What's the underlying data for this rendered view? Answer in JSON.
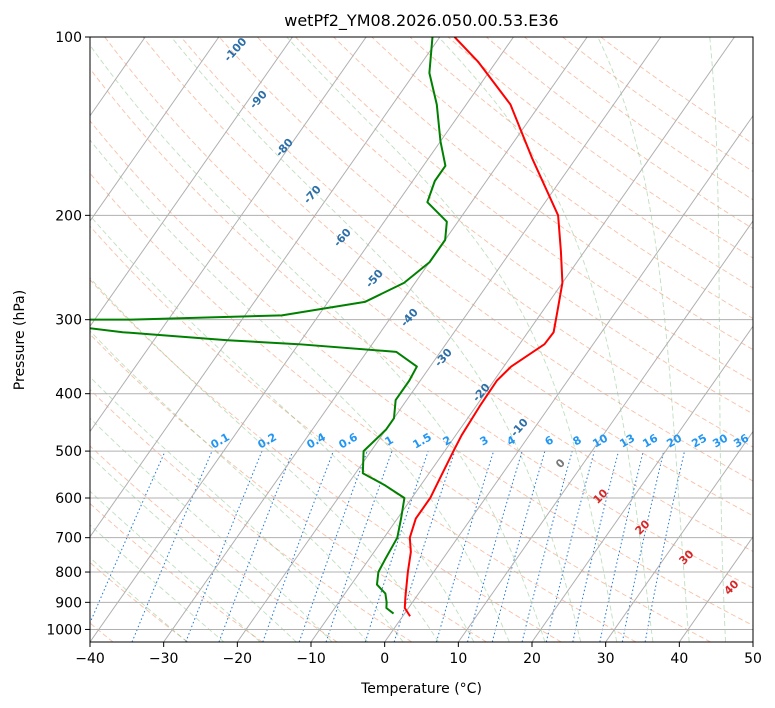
{
  "chart_data": {
    "type": "line",
    "title": "wetPf2_YM08.2026.050.00.53.E36",
    "xlabel": "Temperature (°C)",
    "ylabel": "Pressure (hPa)",
    "xlim": [
      -40,
      50
    ],
    "ylim": [
      1050,
      100
    ],
    "yscale": "log",
    "grid": true,
    "x_ticks": [
      -40,
      -30,
      -20,
      -10,
      0,
      10,
      20,
      30,
      40,
      50
    ],
    "y_ticks": [
      100,
      200,
      300,
      400,
      500,
      600,
      700,
      800,
      900,
      1000
    ],
    "skew": "skew-T log-p diagram",
    "series": [
      {
        "color": "#ff0000",
        "points": [
          [
            1.0,
            950
          ],
          [
            -0.5,
            920
          ],
          [
            -1.5,
            880
          ],
          [
            -3.5,
            800
          ],
          [
            -5,
            740
          ],
          [
            -6.5,
            700
          ],
          [
            -7.5,
            650
          ],
          [
            -7.5,
            600
          ],
          [
            -8,
            560
          ],
          [
            -8.8,
            500
          ],
          [
            -9.2,
            470
          ],
          [
            -9.5,
            420
          ],
          [
            -9.6,
            380
          ],
          [
            -9,
            360
          ],
          [
            -6.6,
            330
          ],
          [
            -6.5,
            315
          ],
          [
            -8,
            290
          ],
          [
            -10,
            260
          ],
          [
            -13.2,
            230
          ],
          [
            -17,
            200
          ],
          [
            -26,
            160
          ],
          [
            -34,
            130
          ],
          [
            -42.5,
            110
          ],
          [
            -48,
            100
          ]
        ]
      },
      {
        "color": "#008000",
        "points": [
          [
            -1.5,
            940
          ],
          [
            -3,
            920
          ],
          [
            -3.5,
            900
          ],
          [
            -4.5,
            870
          ],
          [
            -6.5,
            840
          ],
          [
            -7.5,
            800
          ],
          [
            -7.8,
            760
          ],
          [
            -8.2,
            700
          ],
          [
            -9.5,
            650
          ],
          [
            -11,
            600
          ],
          [
            -15,
            570
          ],
          [
            -19,
            545
          ],
          [
            -21,
            500
          ],
          [
            -20,
            460
          ],
          [
            -20,
            440
          ],
          [
            -21.5,
            410
          ],
          [
            -21.5,
            380
          ],
          [
            -21.8,
            360
          ],
          [
            -26,
            340
          ],
          [
            -40,
            330
          ],
          [
            -50,
            325
          ],
          [
            -65,
            315
          ],
          [
            -75,
            305
          ],
          [
            -90,
            300
          ],
          [
            -65,
            300
          ],
          [
            -45,
            295
          ],
          [
            -35,
            280
          ],
          [
            -31.5,
            260
          ],
          [
            -30,
            240
          ],
          [
            -30,
            220
          ],
          [
            -31.5,
            205
          ],
          [
            -36,
            190
          ],
          [
            -37,
            175
          ],
          [
            -37,
            165
          ],
          [
            -40,
            150
          ],
          [
            -44,
            130
          ],
          [
            -48,
            115
          ],
          [
            -51,
            100
          ]
        ]
      }
    ],
    "dry_adiabat_labels": [
      "-100",
      "-90",
      "-80",
      "-70",
      "-60",
      "-50",
      "-40",
      "-30",
      "-20",
      "-10"
    ],
    "mixing_ratio_labels": [
      "0.1",
      "0.2",
      "0.4",
      "0.6",
      "1",
      "1.5",
      "2",
      "3",
      "4",
      "6",
      "8",
      "10",
      "13",
      "16",
      "20",
      "25",
      "30",
      "36"
    ],
    "moist_adiabat_labels": [
      "0",
      "10",
      "20",
      "30",
      "40"
    ]
  }
}
